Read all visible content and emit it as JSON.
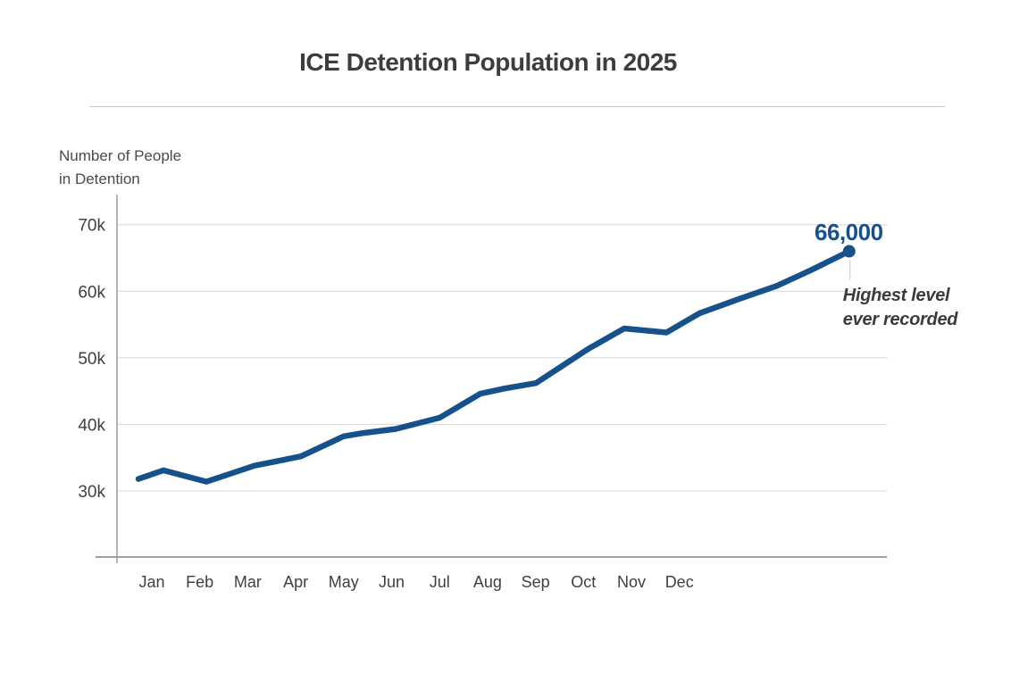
{
  "title": "ICE Detention Population in 2025",
  "y_axis_label": [
    "Number of People",
    "in Detention"
  ],
  "colors": {
    "line": "#17518c",
    "endpoint_dot": "#17518c",
    "endpoint_label": "#17518c",
    "title_text": "#3d3d3d",
    "axis_text": "#3f3f3f",
    "gridline": "#d7d7d7",
    "axis_line": "#9e9e9e",
    "background": "#ffffff"
  },
  "chart_data": {
    "type": "line",
    "title": "ICE Detention Population in 2025",
    "xlabel": "",
    "ylabel": "Number of People in Detention",
    "grid": "horizontal",
    "legend": "none",
    "ylim": [
      20000,
      74000
    ],
    "x_tick_labels": [
      "Jan",
      "Feb",
      "Mar",
      "Apr",
      "May",
      "Jun",
      "Jul",
      "Aug",
      "Sep",
      "Oct",
      "Nov",
      "Dec"
    ],
    "y_ticks": [
      {
        "label": "70k",
        "value": 70000
      },
      {
        "label": "60k",
        "value": 60000
      },
      {
        "label": "50k",
        "value": 50000
      },
      {
        "label": "40k",
        "value": 40000
      },
      {
        "label": "30k",
        "value": 30000
      }
    ],
    "series": [
      {
        "name": "ICE detention population",
        "color": "#17518c",
        "points": [
          {
            "month_index": -0.28,
            "value_thousands": 31.8
          },
          {
            "month_index": 0.24,
            "value_thousands": 33.1
          },
          {
            "month_index": 1.14,
            "value_thousands": 31.4
          },
          {
            "month_index": 2.14,
            "value_thousands": 33.8
          },
          {
            "month_index": 2.7,
            "value_thousands": 34.6
          },
          {
            "month_index": 3.11,
            "value_thousands": 35.2
          },
          {
            "month_index": 4.0,
            "value_thousands": 38.2
          },
          {
            "month_index": 4.41,
            "value_thousands": 38.7
          },
          {
            "month_index": 5.08,
            "value_thousands": 39.3
          },
          {
            "month_index": 6.0,
            "value_thousands": 41.0
          },
          {
            "month_index": 6.85,
            "value_thousands": 44.6
          },
          {
            "month_index": 7.36,
            "value_thousands": 45.4
          },
          {
            "month_index": 8.01,
            "value_thousands": 46.2
          },
          {
            "month_index": 9.09,
            "value_thousands": 51.3
          },
          {
            "month_index": 9.85,
            "value_thousands": 54.4
          },
          {
            "month_index": 10.73,
            "value_thousands": 53.8
          },
          {
            "month_index": 11.42,
            "value_thousands": 56.7
          },
          {
            "month_index": 12.23,
            "value_thousands": 58.8
          },
          {
            "month_index": 13.03,
            "value_thousands": 60.8
          },
          {
            "month_index": 13.78,
            "value_thousands": 63.3
          },
          {
            "month_index": 14.54,
            "value_thousands": 66.0
          }
        ]
      }
    ],
    "endpoint": {
      "label": "66,000",
      "value": 66000,
      "annotation_line1": "Highest level",
      "annotation_line2": "ever recorded"
    }
  }
}
